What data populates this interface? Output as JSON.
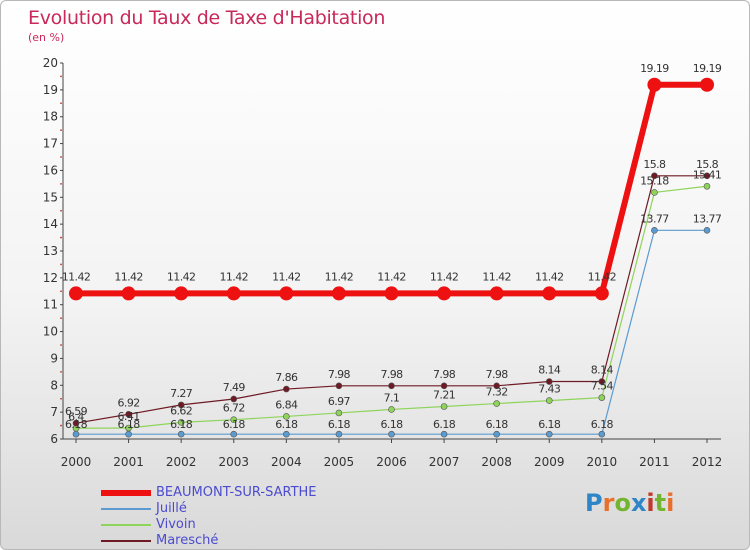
{
  "header": {
    "title": "Evolution du Taux de Taxe d'Habitation",
    "subtitle": "(en %)"
  },
  "logo": {
    "letters": [
      "P",
      "r",
      "o",
      "x",
      "i",
      "t",
      "i"
    ],
    "colors": [
      "#2e86c8",
      "#e8702a",
      "#74b52f",
      "#2e86c8",
      "#c0392b",
      "#74b52f",
      "#e8702a"
    ]
  },
  "chart_data": {
    "type": "line",
    "title": "Evolution du Taux de Taxe d'Habitation",
    "ylabel": "(en %)",
    "xlabel": "",
    "x": [
      "2000",
      "2001",
      "2002",
      "2003",
      "2004",
      "2005",
      "2006",
      "2007",
      "2008",
      "2009",
      "2010",
      "2011",
      "2012"
    ],
    "ylim": [
      6,
      20
    ],
    "yticks": [
      "6",
      "7",
      "8",
      "9",
      "10",
      "11",
      "12",
      "13",
      "14",
      "15",
      "16",
      "17",
      "18",
      "19",
      "20"
    ],
    "grid": false,
    "legend_position": "bottom-left",
    "series": [
      {
        "name": "BEAUMONT-SUR-SARTHE",
        "color": "#ee1111",
        "values": [
          11.42,
          11.42,
          11.42,
          11.42,
          11.42,
          11.42,
          11.42,
          11.42,
          11.42,
          11.42,
          11.42,
          19.19,
          19.19
        ],
        "labels": [
          "11.42",
          "11.42",
          "11.42",
          "11.42",
          "11.42",
          "11.42",
          "11.42",
          "11.42",
          "11.42",
          "11.42",
          "11.42",
          "19.19",
          "19.19"
        ]
      },
      {
        "name": "Juillé",
        "color": "#5b9bd0",
        "values": [
          6.18,
          6.18,
          6.18,
          6.18,
          6.18,
          6.18,
          6.18,
          6.18,
          6.18,
          6.18,
          6.18,
          13.77,
          13.77
        ],
        "labels": [
          "6.18",
          "6.18",
          "6.18",
          "6.18",
          "6.18",
          "6.18",
          "6.18",
          "6.18",
          "6.18",
          "6.18",
          "6.18",
          "13.77",
          "13.77"
        ]
      },
      {
        "name": "Vivoin",
        "color": "#8fd45a",
        "values": [
          6.4,
          6.41,
          6.62,
          6.72,
          6.84,
          6.97,
          7.1,
          7.21,
          7.32,
          7.43,
          7.54,
          15.18,
          15.41
        ],
        "labels": [
          "6.4",
          "6.41",
          "6.62",
          "6.72",
          "6.84",
          "6.97",
          "7.1",
          "7.21",
          "7.32",
          "7.43",
          "7.54",
          "15.18",
          "15.41"
        ]
      },
      {
        "name": "Maresché",
        "color": "#6e1a24",
        "values": [
          6.59,
          6.92,
          7.27,
          7.49,
          7.86,
          7.98,
          7.98,
          7.98,
          7.98,
          8.14,
          8.14,
          15.8,
          15.8
        ],
        "labels": [
          "6.59",
          "6.92",
          "7.27",
          "7.49",
          "7.86",
          "7.98",
          "7.98",
          "7.98",
          "7.98",
          "8.14",
          "8.14",
          "15.8",
          "15.8"
        ]
      }
    ]
  }
}
